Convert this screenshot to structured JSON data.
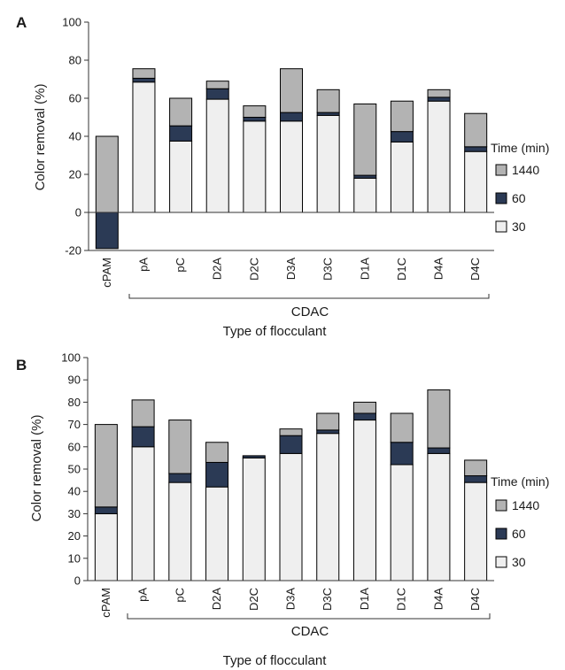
{
  "chart_data": [
    {
      "panel": "A",
      "type": "bar",
      "stacked": true,
      "categories": [
        "cPAM",
        "pA",
        "pC",
        "D2A",
        "D2C",
        "D3A",
        "D3C",
        "D1A",
        "D1C",
        "D4A",
        "D4C"
      ],
      "series": [
        {
          "name": "30",
          "values": [
            0,
            68.5,
            37.5,
            59.5,
            48,
            48,
            51,
            18,
            37,
            58.5,
            32
          ],
          "color": "#efefef"
        },
        {
          "name": "60",
          "values": [
            -19,
            2,
            8,
            5.5,
            2,
            4.5,
            1.5,
            1.5,
            5.5,
            2,
            2.5
          ],
          "color": "#2b3a55"
        },
        {
          "name": "1440",
          "values": [
            40,
            5,
            14.5,
            4,
            6,
            23,
            12,
            37.5,
            16,
            4,
            17.5
          ],
          "color": "#b3b3b3"
        }
      ],
      "ylabel": "Color removal (%)",
      "xlabel": "Type of flocculant",
      "group_label": "CDAC",
      "ylim": [
        -20,
        100
      ],
      "yticks": [
        "-20",
        "0",
        "20",
        "40",
        "60",
        "80",
        "100"
      ],
      "legend_title": "Time (min)",
      "legend_position": "right",
      "grid": false
    },
    {
      "panel": "B",
      "type": "bar",
      "stacked": true,
      "categories": [
        "cPAM",
        "pA",
        "pC",
        "D2A",
        "D2C",
        "D3A",
        "D3C",
        "D1A",
        "D1C",
        "D4A",
        "D4C"
      ],
      "series": [
        {
          "name": "30",
          "values": [
            30,
            60,
            44,
            42,
            55,
            57,
            66,
            72,
            52,
            57,
            44
          ],
          "color": "#efefef"
        },
        {
          "name": "60",
          "values": [
            3,
            9,
            4,
            11,
            1,
            8,
            1.5,
            3,
            10,
            2.5,
            3
          ],
          "color": "#2b3a55"
        },
        {
          "name": "1440",
          "values": [
            37,
            12,
            24,
            9,
            0,
            3,
            7.5,
            5,
            13,
            26,
            7
          ],
          "color": "#b3b3b3"
        }
      ],
      "ylabel": "Color removal (%)",
      "xlabel": "Type of flocculant",
      "group_label": "CDAC",
      "ylim": [
        0,
        100
      ],
      "yticks": [
        "0",
        "10",
        "20",
        "30",
        "40",
        "50",
        "60",
        "70",
        "80",
        "90",
        "100"
      ],
      "legend_title": "Time (min)",
      "legend_position": "right",
      "grid": false
    }
  ]
}
